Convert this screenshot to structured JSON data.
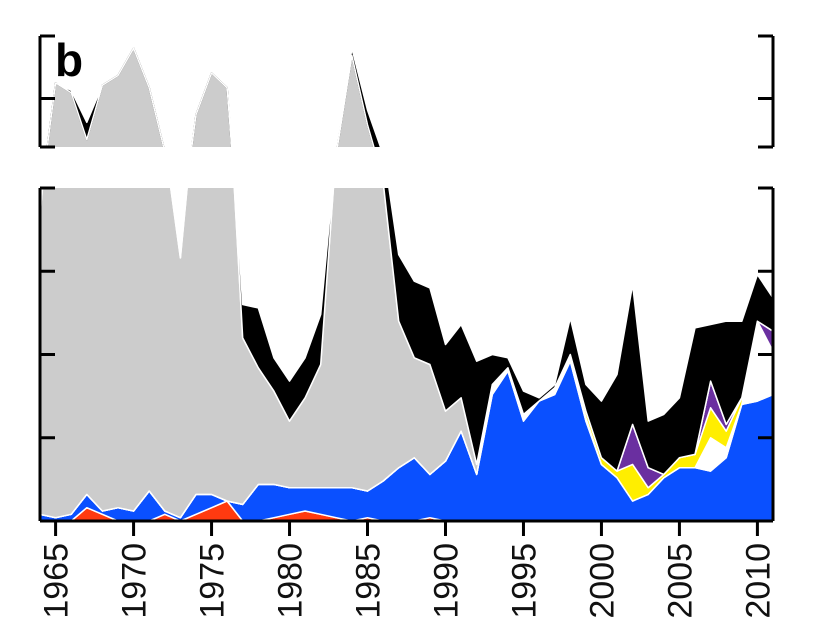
{
  "panel_label": "b",
  "chart_data": {
    "type": "area",
    "stacked": true,
    "axis_break": true,
    "x": [
      1964,
      1965,
      1966,
      1967,
      1968,
      1969,
      1970,
      1971,
      1972,
      1973,
      1974,
      1975,
      1976,
      1977,
      1978,
      1979,
      1980,
      1981,
      1982,
      1983,
      1984,
      1985,
      1986,
      1987,
      1988,
      1989,
      1990,
      1991,
      1992,
      1993,
      1994,
      1995,
      1996,
      1997,
      1998,
      1999,
      2000,
      2001,
      2002,
      2003,
      2004,
      2005,
      2006,
      2007,
      2008,
      2009,
      2010,
      2011
    ],
    "xlim": [
      1964,
      2011
    ],
    "xticks": [
      "1965",
      "1970",
      "1975",
      "1980",
      "1985",
      "1990",
      "1995",
      "2000",
      "2005",
      "2010"
    ],
    "lower_panel_ylim": [
      0,
      100
    ],
    "upper_panel_ylim": [
      115,
      160
    ],
    "y_tick_labels_shown": false,
    "grid": false,
    "legend": "none",
    "series": [
      {
        "color": "#ff3a10",
        "values": [
          0,
          0,
          0,
          4,
          2,
          0,
          0,
          0,
          2,
          0,
          2,
          4,
          6,
          0,
          0,
          1,
          2,
          3,
          2,
          1,
          0,
          1,
          0,
          0,
          0,
          1,
          0,
          0,
          0,
          0,
          0,
          0,
          0,
          0,
          0,
          0,
          0,
          0,
          0,
          0,
          0,
          0,
          0,
          0,
          0,
          0,
          0,
          0
        ]
      },
      {
        "color": "#0a50ff",
        "values": [
          2,
          1,
          2,
          4,
          1,
          4,
          3,
          9,
          1,
          1,
          6,
          4,
          0,
          5,
          11,
          10,
          8,
          7,
          8,
          9,
          10,
          8,
          12,
          16,
          19,
          13,
          18,
          27,
          14,
          38,
          45,
          30,
          36,
          38,
          48,
          30,
          17,
          13,
          6,
          8,
          13,
          16,
          16,
          15,
          19,
          35,
          36,
          38
        ]
      },
      {
        "color": "#ffffff",
        "values": [
          0,
          0,
          0,
          0,
          0,
          0,
          0,
          0,
          0,
          0,
          0,
          0,
          0,
          0,
          0,
          0,
          0,
          0,
          0,
          0,
          0,
          0,
          0,
          0,
          0,
          0,
          0,
          0,
          0,
          3,
          1,
          2,
          0,
          2,
          1,
          1,
          0,
          0,
          0,
          0,
          0,
          0,
          0,
          10,
          3,
          0,
          24,
          13
        ]
      },
      {
        "color": "#ffee00",
        "values": [
          0,
          0,
          0,
          0,
          0,
          0,
          0,
          0,
          0,
          0,
          0,
          0,
          0,
          0,
          0,
          0,
          0,
          0,
          0,
          0,
          0,
          0,
          0,
          0,
          0,
          0,
          0,
          0,
          0,
          0,
          0,
          0,
          0,
          0,
          1,
          2,
          2,
          2,
          11,
          2,
          1,
          3,
          4,
          9,
          5,
          2,
          0,
          0
        ]
      },
      {
        "color": "#6a2fa0",
        "values": [
          0,
          0,
          0,
          0,
          0,
          0,
          0,
          0,
          0,
          0,
          0,
          0,
          0,
          0,
          0,
          0,
          0,
          0,
          0,
          0,
          0,
          0,
          0,
          0,
          0,
          0,
          0,
          0,
          0,
          0,
          0,
          0,
          0,
          0,
          0,
          0,
          0,
          0,
          12,
          6,
          0,
          0,
          0,
          8,
          2,
          0,
          0,
          6
        ]
      },
      {
        "color": "#cccccc",
        "values": [
          90,
          140,
          135,
          110,
          137,
          140,
          152,
          130,
          110,
          78,
          120,
          137,
          133,
          50,
          35,
          28,
          20,
          27,
          37,
          102,
          142,
          115,
          90,
          44,
          30,
          33,
          15,
          10,
          3,
          0,
          0,
          0,
          0,
          0,
          0,
          0,
          0,
          0,
          0,
          0,
          0,
          0,
          0,
          0,
          0,
          0,
          0,
          0
        ]
      },
      {
        "color": "#000000",
        "values": [
          0,
          0,
          1,
          7,
          0,
          0,
          0,
          0,
          0,
          2,
          0,
          0,
          0,
          10,
          18,
          10,
          12,
          12,
          15,
          0,
          3,
          6,
          10,
          20,
          23,
          23,
          20,
          22,
          31,
          9,
          3,
          7,
          1,
          1,
          11,
          8,
          17,
          29,
          42,
          14,
          18,
          18,
          38,
          17,
          31,
          23,
          14,
          10
        ]
      }
    ]
  }
}
